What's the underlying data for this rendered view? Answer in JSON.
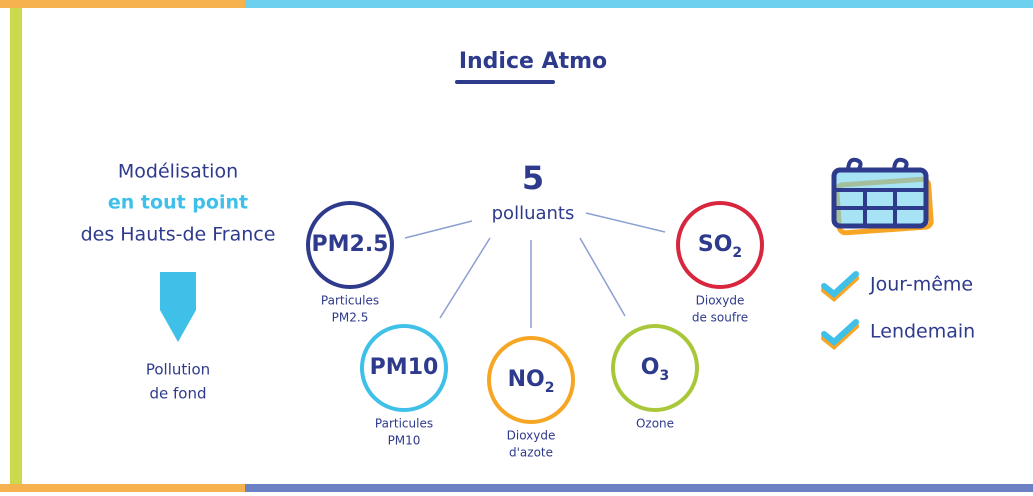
{
  "title": "Indice Atmo",
  "left": {
    "lines": [
      "Modélisation",
      "en tout point",
      "des Hauts-de France"
    ],
    "result": [
      "Pollution",
      "de fond"
    ]
  },
  "center": {
    "count": "5",
    "label": "polluants"
  },
  "pollutants": [
    {
      "symbol": "PM2.5",
      "sub": "",
      "description": [
        "Particules",
        "PM2.5"
      ]
    },
    {
      "symbol": "PM10",
      "sub": "",
      "description": [
        "Particules",
        "PM10"
      ]
    },
    {
      "symbol": "NO",
      "sub": "2",
      "description": [
        "Dioxyde",
        "d'azote"
      ]
    },
    {
      "symbol": "O",
      "sub": "3",
      "description": [
        "Ozone"
      ]
    },
    {
      "symbol": "SO",
      "sub": "2",
      "description": [
        "Dioxyde",
        "de soufre"
      ]
    }
  ],
  "forecast": [
    "Jour-même",
    "Lendemain"
  ]
}
